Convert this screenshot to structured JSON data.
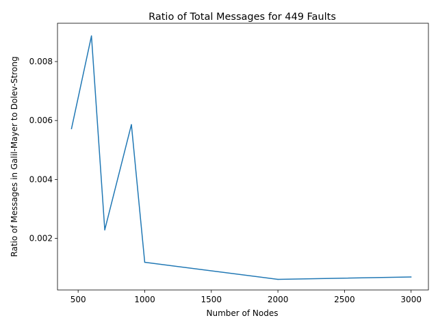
{
  "chart_data": {
    "type": "line",
    "title": "Ratio of Total Messages for 449 Faults",
    "xlabel": "Number of Nodes",
    "ylabel": "Ratio of Messages in Galil-Mayer to Dolev-Strong",
    "xlim": [
      345,
      3130
    ],
    "ylim": [
      0.00025,
      0.0093
    ],
    "x_ticks": [
      500,
      1000,
      1500,
      2000,
      2500,
      3000
    ],
    "y_ticks": [
      0.002,
      0.004,
      0.006,
      0.008
    ],
    "x_tick_labels": [
      "500",
      "1000",
      "1500",
      "2000",
      "2500",
      "3000"
    ],
    "y_tick_labels": [
      "0.002",
      "0.004",
      "0.006",
      "0.008"
    ],
    "grid": false,
    "series": [
      {
        "color": "#1f77b4",
        "x": [
          450,
          600,
          700,
          900,
          1000,
          2000,
          3000
        ],
        "y": [
          0.00572,
          0.00887,
          0.00229,
          0.00586,
          0.00119,
          0.00061,
          0.00069
        ]
      }
    ]
  }
}
